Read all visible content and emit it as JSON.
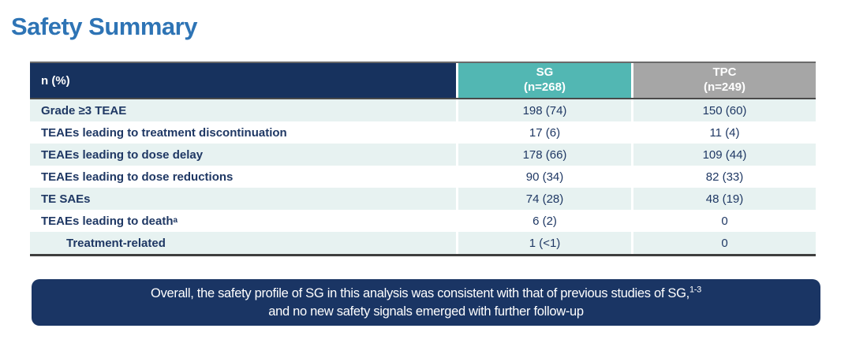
{
  "title": "Safety Summary",
  "colors": {
    "title-blue": "#2e74b5",
    "header-navy": "#17325e",
    "teal": "#52b7b3",
    "gray": "#a6a6a6",
    "row-alt": "#e7f2f1",
    "text-navy": "#1f3864",
    "banner-navy": "#1a3564"
  },
  "table": {
    "header": {
      "metric_label": "n (%)",
      "columns": [
        {
          "name": "SG",
          "n": "(n=268)"
        },
        {
          "name": "TPC",
          "n": "(n=249)"
        }
      ]
    },
    "rows": [
      {
        "label": "Grade ≥3 TEAE",
        "sg": "198 (74)",
        "tpc": "150 (60)"
      },
      {
        "label": "TEAEs leading to treatment discontinuation",
        "sg": "17 (6)",
        "tpc": "11 (4)"
      },
      {
        "label": "TEAEs leading to dose delay",
        "sg": "178 (66)",
        "tpc": "109 (44)"
      },
      {
        "label": "TEAEs leading to dose reductions",
        "sg": "90 (34)",
        "tpc": "82 (33)"
      },
      {
        "label": "TE SAEs",
        "sg": "74 (28)",
        "tpc": "48 (19)"
      },
      {
        "label": "TEAEs leading to death",
        "sup": "a",
        "sg": "6 (2)",
        "tpc": "0"
      },
      {
        "label": "Treatment-related",
        "indent": true,
        "sg": "1 (<1)",
        "tpc": "0"
      }
    ]
  },
  "banner": {
    "line1": "Overall, the safety profile of SG in this analysis was consistent with that of previous studies of SG,",
    "line1_sup": "1-3",
    "line2": "and no new safety signals emerged with further follow-up"
  }
}
